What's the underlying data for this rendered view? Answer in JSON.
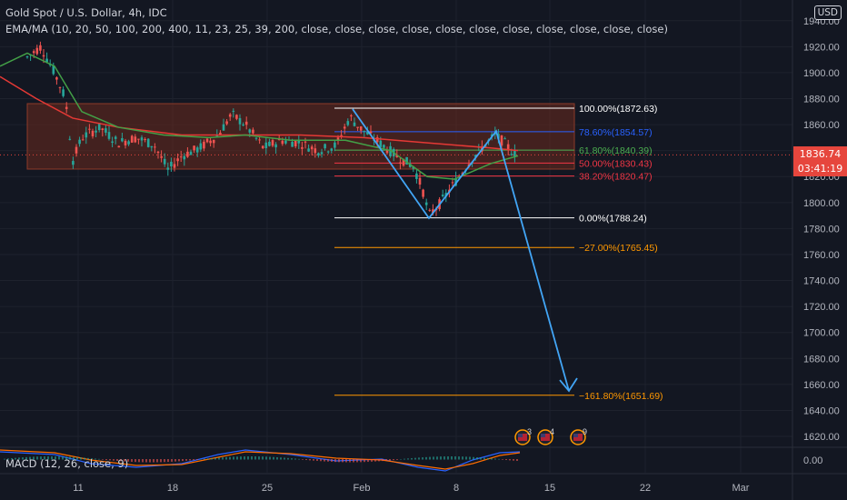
{
  "header": {
    "symbol_line": "Gold Spot / U.S. Dollar, 4h, IDC",
    "indicator_line": "EMA/MA (10, 20, 50, 100, 200, 400, 11, 23, 25, 39, 200, close, close, close, close, close, close, close, close, close, close, close)"
  },
  "currency_button": "USD",
  "macd_label": "MACD (12, 26, close, 9)",
  "price_axis": {
    "ticks": [
      "1920.00",
      "1900.00",
      "1880.00",
      "1860.00",
      "1840.00",
      "1820.00",
      "1800.00",
      "1780.00",
      "1760.00",
      "1740.00",
      "1720.00",
      "1700.00",
      "1680.00",
      "1660.00",
      "1640.00",
      "1620.00"
    ],
    "partial_top": "1940.00",
    "macd_tick": "0.00",
    "current_price": "1836.74",
    "countdown": "03:41:19"
  },
  "time_axis": [
    "11",
    "18",
    "25",
    "Feb",
    "8",
    "15",
    "22",
    "Mar"
  ],
  "fib_levels": [
    {
      "label": "100.00%(1872.63)",
      "color": "#ffffff"
    },
    {
      "label": "78.60%(1854.57)",
      "color": "#2962ff"
    },
    {
      "label": "61.80%(1840.39)",
      "color": "#4caf50"
    },
    {
      "label": "50.00%(1830.43)",
      "color": "#f23645"
    },
    {
      "label": "38.20%(1820.47)",
      "color": "#f23645"
    },
    {
      "label": "0.00%(1788.24)",
      "color": "#ffffff"
    },
    {
      "label": "−27.00%(1765.45)",
      "color": "#ff9800"
    },
    {
      "label": "−161.80%(1651.69)",
      "color": "#ff9800"
    }
  ],
  "event_markers": [
    {
      "flag": "us-flag-icon",
      "count": "3"
    },
    {
      "flag": "us-flag-icon",
      "count": "4"
    },
    {
      "flag": "us-flag-icon",
      "count": "9"
    }
  ],
  "colors": {
    "background": "#131722",
    "candle_up": "#26a69a",
    "candle_down": "#ef5350",
    "zone_fill": "#6b2a1e",
    "projection_arrow": "#42a5f5",
    "ma_green": "#43a047",
    "ma_red": "#e53935",
    "price_tag": "#e6463d"
  }
}
